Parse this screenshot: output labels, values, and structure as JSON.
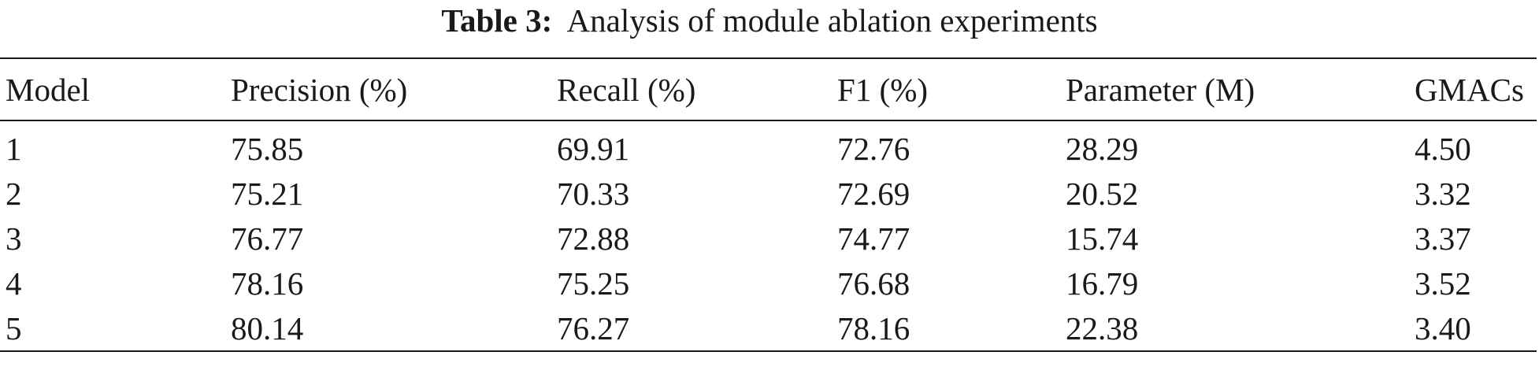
{
  "caption": {
    "label": "Table 3:",
    "text": "Analysis of module ablation experiments"
  },
  "table": {
    "columns": [
      "Model",
      "Precision (%)",
      "Recall (%)",
      "F1 (%)",
      "Parameter (M)",
      "GMACs"
    ],
    "rows": [
      [
        "1",
        "75.85",
        "69.91",
        "72.76",
        "28.29",
        "4.50"
      ],
      [
        "2",
        "75.21",
        "70.33",
        "72.69",
        "20.52",
        "3.32"
      ],
      [
        "3",
        "76.77",
        "72.88",
        "74.77",
        "15.74",
        "3.37"
      ],
      [
        "4",
        "78.16",
        "75.25",
        "76.68",
        "16.79",
        "3.52"
      ],
      [
        "5",
        "80.14",
        "76.27",
        "78.16",
        "22.38",
        "3.40"
      ]
    ]
  }
}
